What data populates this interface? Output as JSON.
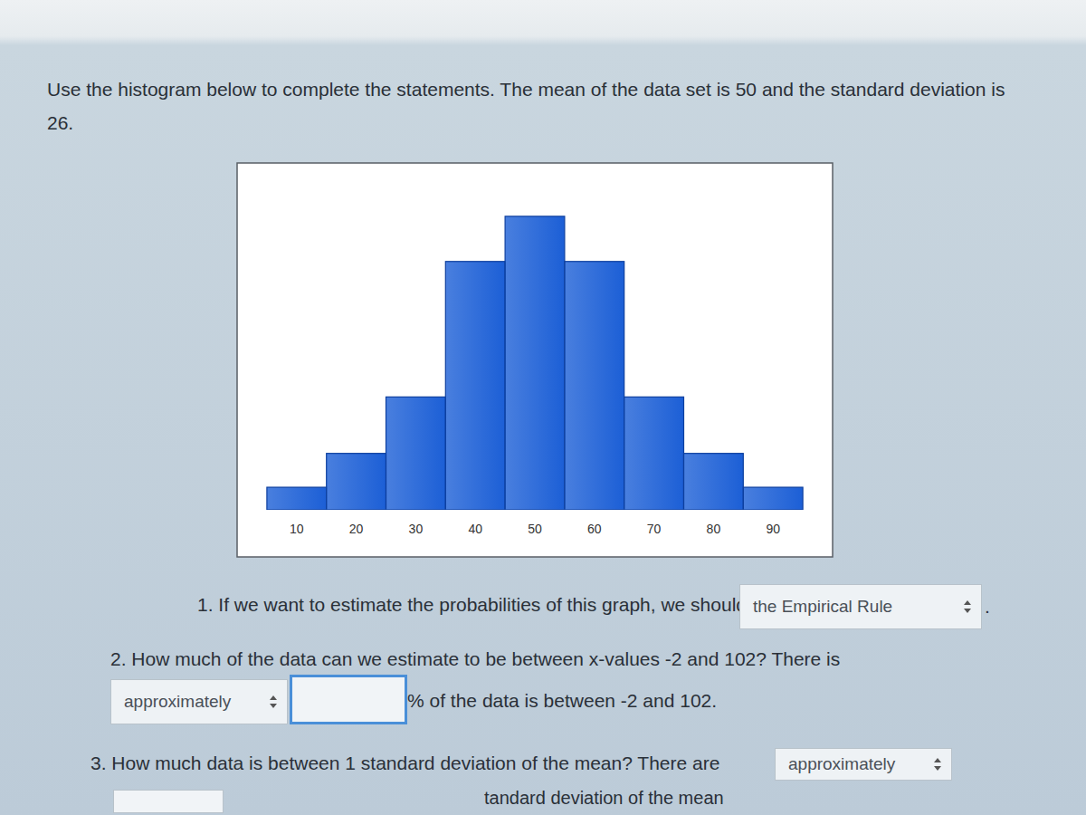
{
  "header": {
    "instructions": "Use the histogram below to complete the statements. The mean of the data set is 50 and the standard deviation is 26."
  },
  "chart_data": {
    "type": "histogram",
    "bins": [
      5,
      15,
      25,
      35,
      45,
      55,
      65,
      75,
      85,
      95
    ],
    "values": [
      1,
      2.5,
      5,
      11,
      13,
      11,
      5,
      2.5,
      1
    ],
    "color": "#1c5fd6",
    "xlim": [
      0,
      100
    ],
    "xticks": [
      10,
      20,
      30,
      40,
      50,
      60,
      70,
      80,
      90
    ],
    "ylim": [
      0,
      15
    ],
    "tick_labels": "x",
    "grid": false
  },
  "questions": [
    {
      "text": "1. If we want to estimate the probabilities of this graph, we should use",
      "answer": "the Empirical Rule",
      "end": "."
    },
    {
      "text": "2. How much of the data can we estimate to be between x-values -2 and 102? There is",
      "qualifier": "approximately",
      "suffix": "% of the data is between -2 and 102."
    },
    {
      "text": "3. How much data is between 1 standard deviation of the mean? There are",
      "qualifier": "approximately",
      "suffix": "tandard deviation of the mean"
    }
  ]
}
